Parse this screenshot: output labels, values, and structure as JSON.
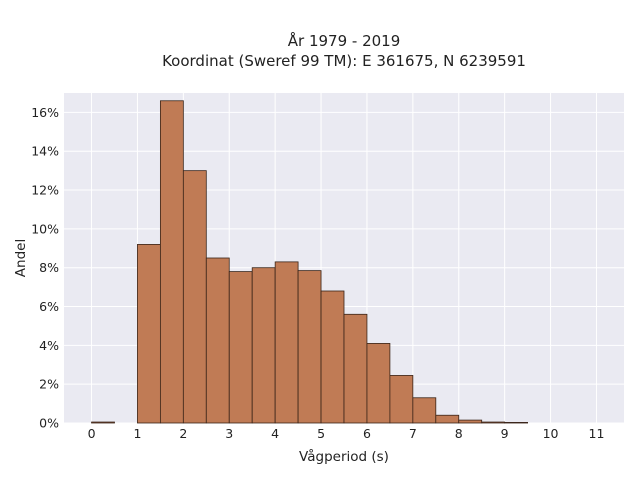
{
  "chart_data": {
    "type": "bar",
    "title_lines": [
      "År 1979 - 2019",
      "Koordinat (Sweref 99 TM): E 361675, N 6239591"
    ],
    "xlabel": "Vågperiod (s)",
    "ylabel": "Andel",
    "xlim": [
      -0.6,
      11.6
    ],
    "ylim": [
      0,
      17
    ],
    "x_ticks": [
      0,
      1,
      2,
      3,
      4,
      5,
      6,
      7,
      8,
      9,
      10,
      11
    ],
    "y_ticks": [
      0,
      2,
      4,
      6,
      8,
      10,
      12,
      14,
      16
    ],
    "y_tick_suffix": "%",
    "grid": true,
    "bin_width": 0.5,
    "bins": [
      {
        "start": 0.0,
        "value": 0.05
      },
      {
        "start": 1.0,
        "value": 9.2
      },
      {
        "start": 1.5,
        "value": 16.6
      },
      {
        "start": 2.0,
        "value": 13.0
      },
      {
        "start": 2.5,
        "value": 8.5
      },
      {
        "start": 3.0,
        "value": 7.8
      },
      {
        "start": 3.5,
        "value": 8.0
      },
      {
        "start": 4.0,
        "value": 8.3
      },
      {
        "start": 4.5,
        "value": 7.85
      },
      {
        "start": 5.0,
        "value": 6.8
      },
      {
        "start": 5.5,
        "value": 5.6
      },
      {
        "start": 6.0,
        "value": 4.1
      },
      {
        "start": 6.5,
        "value": 2.45
      },
      {
        "start": 7.0,
        "value": 1.3
      },
      {
        "start": 7.5,
        "value": 0.4
      },
      {
        "start": 8.0,
        "value": 0.15
      },
      {
        "start": 8.5,
        "value": 0.05
      },
      {
        "start": 9.0,
        "value": 0.03
      }
    ],
    "colors": {
      "bar_fill": "#c07b55",
      "bar_stroke": "#3a2418",
      "plot_background": "#eaeaf2",
      "grid": "#ffffff"
    }
  }
}
